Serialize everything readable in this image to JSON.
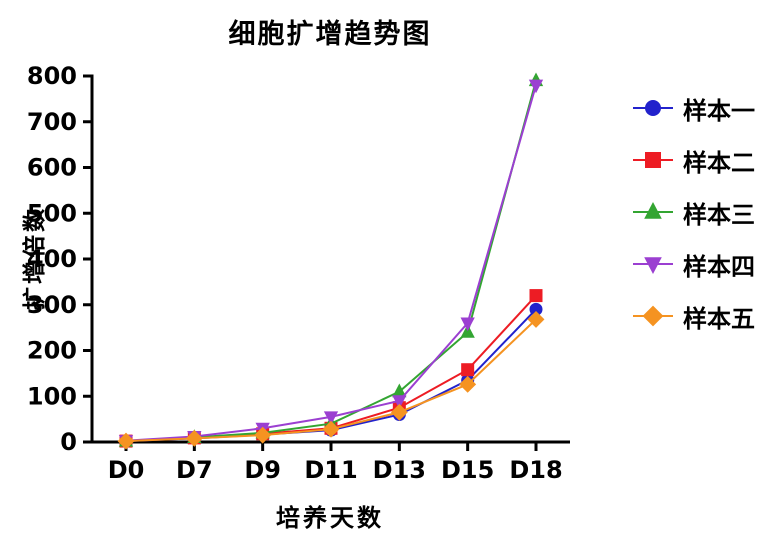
{
  "chart_data": {
    "type": "line",
    "title": "细胞扩增趋势图",
    "xlabel": "培养天数",
    "ylabel": "扩增倍数",
    "categories": [
      "D0",
      "D7",
      "D9",
      "D11",
      "D13",
      "D15",
      "D18"
    ],
    "ylim": [
      0,
      800
    ],
    "ytick_step": 100,
    "yticks": [
      0,
      100,
      200,
      300,
      400,
      500,
      600,
      700,
      800
    ],
    "grid": false,
    "legend_position": "right",
    "series": [
      {
        "name": "样本一",
        "marker": "circle",
        "color": "#2222cc",
        "values": [
          2,
          8,
          16,
          26,
          60,
          135,
          290
        ]
      },
      {
        "name": "样本二",
        "marker": "square",
        "color": "#ed1c24",
        "values": [
          2,
          9,
          18,
          30,
          75,
          158,
          320
        ]
      },
      {
        "name": "样本三",
        "marker": "triangle-up",
        "color": "#33a532",
        "values": [
          2,
          10,
          20,
          40,
          110,
          240,
          790
        ]
      },
      {
        "name": "样本四",
        "marker": "triangle-down",
        "color": "#9b3fd1",
        "values": [
          3,
          12,
          30,
          55,
          90,
          260,
          780
        ]
      },
      {
        "name": "样本五",
        "marker": "diamond",
        "color": "#f59321",
        "values": [
          2,
          8,
          15,
          28,
          65,
          126,
          268
        ]
      }
    ]
  }
}
